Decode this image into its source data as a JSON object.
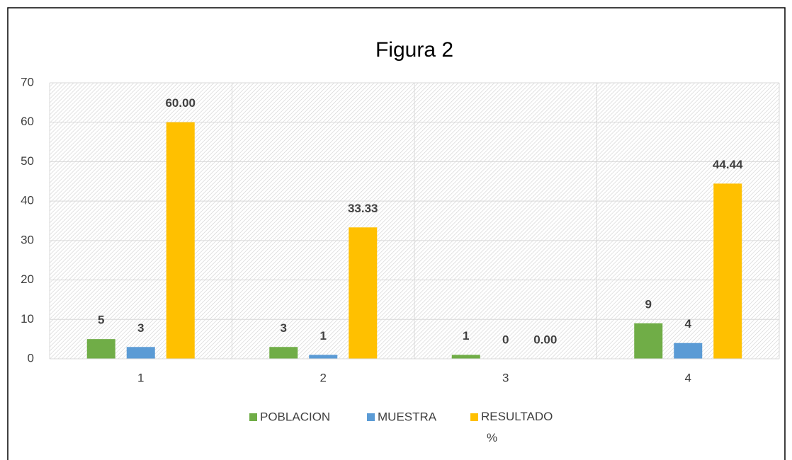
{
  "chart_data": {
    "type": "bar",
    "title": "Figura 2",
    "categories": [
      "1",
      "2",
      "3",
      "4"
    ],
    "series": [
      {
        "name": "POBLACION",
        "color": "#70ad47",
        "values": [
          5,
          3,
          1,
          9
        ]
      },
      {
        "name": "MUESTRA",
        "color": "#5b9bd5",
        "values": [
          3,
          1,
          0,
          4
        ]
      },
      {
        "name": "RESULTADO %",
        "color": "#ffc000",
        "values": [
          60,
          33.33,
          0,
          44.44
        ],
        "value_labels": [
          "60.00",
          "33.33",
          "0.00",
          "44.44"
        ]
      }
    ],
    "ylim": [
      0,
      70
    ],
    "yticks": [
      0,
      10,
      20,
      30,
      40,
      50,
      60,
      70
    ],
    "grid": true,
    "legend": "bottom"
  }
}
